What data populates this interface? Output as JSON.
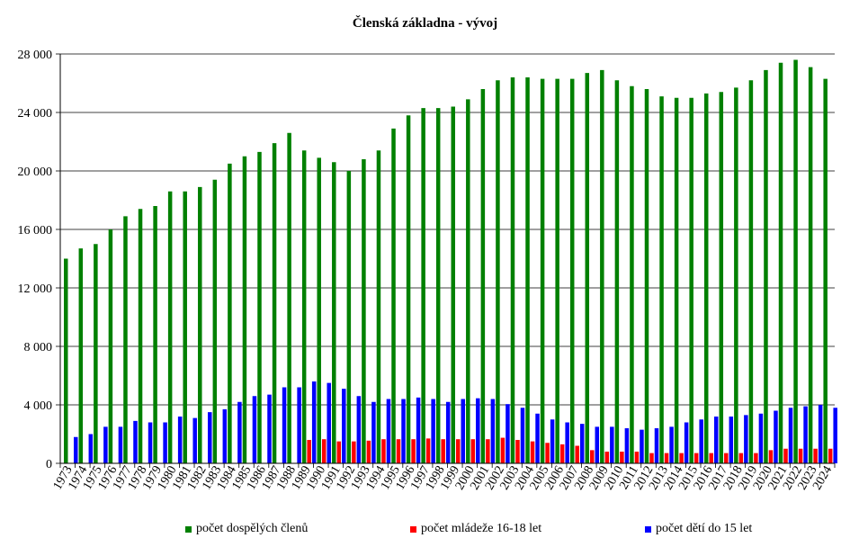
{
  "chart_data": {
    "type": "bar",
    "title": "Členská základna - vývoj",
    "xlabel": "",
    "ylabel": "",
    "ylim": [
      0,
      28000
    ],
    "yticks": [
      0,
      4000,
      8000,
      12000,
      16000,
      20000,
      24000,
      28000
    ],
    "ytick_labels": [
      "0",
      "4 000",
      "8 000",
      "12 000",
      "16 000",
      "20 000",
      "24 000",
      "28 000"
    ],
    "grid": true,
    "legend_position": "bottom",
    "categories": [
      "1973",
      "1974",
      "1975",
      "1976",
      "1977",
      "1978",
      "1979",
      "1980",
      "1981",
      "1982",
      "1983",
      "1984",
      "1985",
      "1986",
      "1987",
      "1988",
      "1989",
      "1990",
      "1991",
      "1992",
      "1993",
      "1994",
      "1995",
      "1996",
      "1997",
      "1998",
      "1999",
      "2000",
      "2001",
      "2002",
      "2003",
      "2004",
      "2005",
      "2006",
      "2007",
      "2008",
      "2009",
      "2010",
      "2011",
      "2012",
      "2013",
      "2014",
      "2015",
      "2016",
      "2017",
      "2018",
      "2019",
      "2020",
      "2021",
      "2022",
      "2023",
      "2024"
    ],
    "series": [
      {
        "name": "počet dospělých členů",
        "color": "#008000",
        "values": [
          14000,
          14700,
          15000,
          16000,
          16900,
          17400,
          17600,
          18600,
          18600,
          18900,
          19400,
          20500,
          21000,
          21300,
          21900,
          22600,
          21400,
          20900,
          20600,
          20000,
          20800,
          21400,
          22900,
          23800,
          24300,
          24300,
          24400,
          24900,
          25600,
          26200,
          26400,
          26400,
          26300,
          26300,
          26300,
          26700,
          26900,
          26200,
          25800,
          25600,
          25100,
          25000,
          25000,
          25300,
          25400,
          25700,
          26200,
          26900,
          27400,
          27600,
          27100,
          26300
        ]
      },
      {
        "name": "počet mládeže 16-18 let",
        "color": "#ff0000",
        "values": [
          0,
          0,
          0,
          0,
          0,
          0,
          0,
          0,
          0,
          0,
          0,
          0,
          0,
          0,
          0,
          0,
          1600,
          1650,
          1500,
          1500,
          1550,
          1650,
          1650,
          1650,
          1700,
          1650,
          1650,
          1650,
          1650,
          1750,
          1600,
          1500,
          1400,
          1300,
          1200,
          900,
          800,
          800,
          800,
          700,
          700,
          700,
          700,
          700,
          700,
          700,
          700,
          900,
          1000,
          1000,
          1000,
          1000
        ]
      },
      {
        "name": "počet dětí do 15 let",
        "color": "#0000ff",
        "values": [
          1800,
          2000,
          2500,
          2500,
          2900,
          2800,
          2800,
          3200,
          3100,
          3500,
          3700,
          4200,
          4600,
          4700,
          5200,
          5200,
          5600,
          5500,
          5100,
          4600,
          4200,
          4400,
          4400,
          4500,
          4400,
          4200,
          4400,
          4450,
          4400,
          4050,
          3800,
          3400,
          3000,
          2800,
          2700,
          2500,
          2500,
          2400,
          2300,
          2400,
          2500,
          2800,
          3000,
          3200,
          3200,
          3300,
          3400,
          3600,
          3800,
          3900,
          4000,
          3800
        ]
      }
    ]
  }
}
